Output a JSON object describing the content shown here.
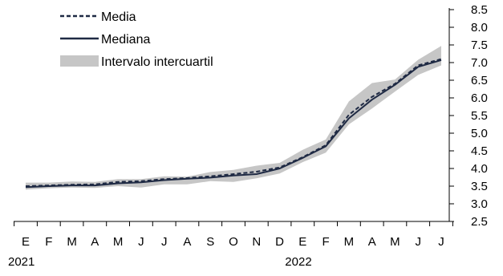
{
  "chart_data": {
    "type": "line",
    "title": "",
    "xlabel": "",
    "ylabel": "",
    "ylim": [
      2.5,
      8.5
    ],
    "yticks": [
      "2.5",
      "3.0",
      "3.5",
      "4.0",
      "4.5",
      "5.0",
      "5.5",
      "6.0",
      "6.5",
      "7.0",
      "7.5",
      "8.0",
      "8.5"
    ],
    "y_axis_side": "right",
    "grid": false,
    "legend_position": "top-left",
    "categories": [
      "E",
      "F",
      "M",
      "A",
      "M",
      "J",
      "J",
      "A",
      "S",
      "O",
      "N",
      "D",
      "E",
      "F",
      "M",
      "A",
      "M",
      "J",
      "J"
    ],
    "year_labels": [
      {
        "label": "2021",
        "category_index": 0
      },
      {
        "label": "2022",
        "category_index": 12
      }
    ],
    "series": [
      {
        "name": "Media",
        "style": "dashed",
        "color": "#1f2a44",
        "values": [
          3.5,
          3.52,
          3.54,
          3.55,
          3.62,
          3.64,
          3.7,
          3.73,
          3.78,
          3.84,
          3.91,
          4.03,
          4.32,
          4.66,
          5.52,
          6.03,
          6.4,
          6.92,
          7.1
        ]
      },
      {
        "name": "Mediana",
        "style": "solid",
        "color": "#1f2a44",
        "values": [
          3.47,
          3.5,
          3.52,
          3.52,
          3.58,
          3.61,
          3.67,
          3.71,
          3.74,
          3.8,
          3.84,
          4.0,
          4.3,
          4.63,
          5.42,
          5.95,
          6.37,
          6.88,
          7.07
        ]
      },
      {
        "name": "Intervalo intercuartil",
        "style": "band",
        "color": "#c6c6c6",
        "lower": [
          3.4,
          3.44,
          3.46,
          3.45,
          3.5,
          3.46,
          3.55,
          3.55,
          3.64,
          3.62,
          3.72,
          3.86,
          4.18,
          4.45,
          5.25,
          5.7,
          6.18,
          6.65,
          6.92
        ],
        "upper": [
          3.6,
          3.6,
          3.63,
          3.62,
          3.7,
          3.7,
          3.78,
          3.77,
          3.9,
          3.96,
          4.08,
          4.16,
          4.53,
          4.82,
          5.9,
          6.42,
          6.52,
          7.08,
          7.47
        ]
      }
    ]
  }
}
